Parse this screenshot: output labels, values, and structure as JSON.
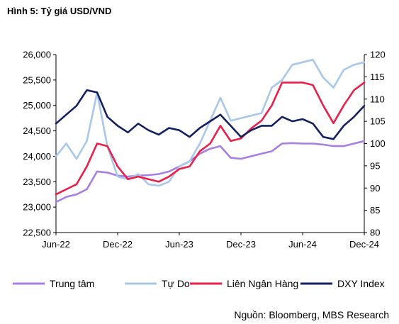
{
  "title": "Hình 5: Tỷ giá USD/VND",
  "source": "Nguồn: Bloomberg, MBS Research",
  "chart_data": {
    "type": "line",
    "x_ticks": [
      "Jun-22",
      "Dec-22",
      "Jun-23",
      "Dec-23",
      "Jun-24",
      "Dec-24"
    ],
    "x_range": [
      "2022-06",
      "2024-12"
    ],
    "ylim_left": [
      22500,
      26000
    ],
    "yticks_left": [
      "22,500",
      "23,000",
      "23,500",
      "24,000",
      "24,500",
      "25,000",
      "25,500",
      "26,000"
    ],
    "ylim_right": [
      80,
      120
    ],
    "yticks_right": [
      "80",
      "85",
      "90",
      "95",
      "100",
      "105",
      "110",
      "115",
      "120"
    ],
    "legend_position": "bottom",
    "series": [
      {
        "name": "Trung tâm",
        "axis": "left",
        "color": "#A77FE0",
        "x": [
          "2022-06",
          "2022-07",
          "2022-08",
          "2022-09",
          "2022-10",
          "2022-11",
          "2022-12",
          "2023-01",
          "2023-02",
          "2023-03",
          "2023-04",
          "2023-05",
          "2023-06",
          "2023-07",
          "2023-08",
          "2023-09",
          "2023-10",
          "2023-11",
          "2023-12",
          "2024-01",
          "2024-02",
          "2024-03",
          "2024-04",
          "2024-05",
          "2024-06",
          "2024-07",
          "2024-08",
          "2024-09",
          "2024-10",
          "2024-11",
          "2024-12"
        ],
        "values": [
          23100,
          23200,
          23250,
          23350,
          23700,
          23680,
          23620,
          23600,
          23620,
          23630,
          23650,
          23700,
          23800,
          23900,
          24050,
          24150,
          24200,
          23970,
          23950,
          24000,
          24050,
          24100,
          24250,
          24260,
          24250,
          24250,
          24230,
          24200,
          24200,
          24250,
          24300
        ]
      },
      {
        "name": "Tự Do",
        "axis": "left",
        "color": "#A9C7E8",
        "x": [
          "2022-06",
          "2022-07",
          "2022-08",
          "2022-09",
          "2022-10",
          "2022-11",
          "2022-12",
          "2023-01",
          "2023-02",
          "2023-03",
          "2023-04",
          "2023-05",
          "2023-06",
          "2023-07",
          "2023-08",
          "2023-09",
          "2023-10",
          "2023-11",
          "2023-12",
          "2024-01",
          "2024-02",
          "2024-03",
          "2024-04",
          "2024-05",
          "2024-06",
          "2024-07",
          "2024-08",
          "2024-09",
          "2024-10",
          "2024-11",
          "2024-12"
        ],
        "values": [
          24000,
          24250,
          23950,
          24300,
          25250,
          24200,
          23600,
          23550,
          23650,
          23450,
          23420,
          23500,
          23800,
          23900,
          24250,
          24700,
          25150,
          24700,
          24750,
          24800,
          24850,
          25350,
          25500,
          25800,
          25850,
          25900,
          25550,
          25350,
          25700,
          25800,
          25850
        ]
      },
      {
        "name": "Liên Ngân Hàng",
        "axis": "left",
        "color": "#E8204A",
        "x": [
          "2022-06",
          "2022-07",
          "2022-08",
          "2022-09",
          "2022-10",
          "2022-11",
          "2022-12",
          "2023-01",
          "2023-02",
          "2023-03",
          "2023-04",
          "2023-05",
          "2023-06",
          "2023-07",
          "2023-08",
          "2023-09",
          "2023-10",
          "2023-11",
          "2023-12",
          "2024-01",
          "2024-02",
          "2024-03",
          "2024-04",
          "2024-05",
          "2024-06",
          "2024-07",
          "2024-08",
          "2024-09",
          "2024-10",
          "2024-11",
          "2024-12"
        ],
        "values": [
          23250,
          23350,
          23450,
          23800,
          24250,
          24200,
          23800,
          23550,
          23600,
          23550,
          23500,
          23600,
          23750,
          23800,
          24100,
          24250,
          24600,
          24300,
          24350,
          24550,
          24700,
          25000,
          25450,
          25450,
          25450,
          25400,
          25000,
          24650,
          25000,
          25300,
          25450
        ]
      },
      {
        "name": "DXY Index",
        "axis": "right",
        "color": "#14215E",
        "x": [
          "2022-06",
          "2022-07",
          "2022-08",
          "2022-09",
          "2022-10",
          "2022-11",
          "2022-12",
          "2023-01",
          "2023-02",
          "2023-03",
          "2023-04",
          "2023-05",
          "2023-06",
          "2023-07",
          "2023-08",
          "2023-09",
          "2023-10",
          "2023-11",
          "2023-12",
          "2024-01",
          "2024-02",
          "2024-03",
          "2024-04",
          "2024-05",
          "2024-06",
          "2024-07",
          "2024-08",
          "2024-09",
          "2024-10",
          "2024-11",
          "2024-12"
        ],
        "values": [
          104.5,
          106.5,
          108.5,
          112,
          111.5,
          106,
          104,
          102.5,
          104.5,
          103,
          102,
          103.5,
          103,
          101.5,
          103.5,
          105,
          106.5,
          104,
          101.5,
          103,
          104,
          104,
          106,
          105,
          105.5,
          104.5,
          101.5,
          101,
          104,
          106,
          108.5
        ]
      }
    ]
  }
}
